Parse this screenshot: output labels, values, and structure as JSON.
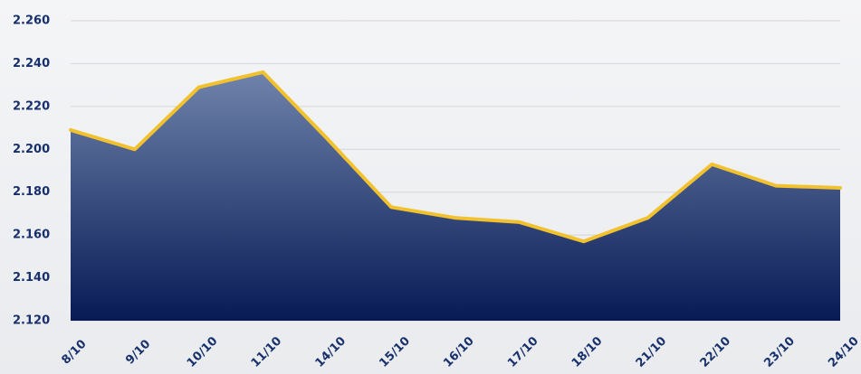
{
  "chart_data": {
    "type": "area",
    "categories": [
      "8/10",
      "9/10",
      "10/10",
      "11/10",
      "14/10",
      "15/10",
      "16/10",
      "17/10",
      "18/10",
      "21/10",
      "22/10",
      "23/10",
      "24/10"
    ],
    "values": [
      2209,
      2200,
      2229,
      2236,
      2205,
      2173,
      2168,
      2166,
      2157,
      2168,
      2193,
      2183,
      2182
    ],
    "color": "#f2c12e",
    "fill_top": "#6f83ab",
    "fill_bottom": "#071a55",
    "ylim": [
      2120,
      2260
    ],
    "yticks": [
      {
        "value": 2120,
        "label": "2.120"
      },
      {
        "value": 2140,
        "label": "2.140"
      },
      {
        "value": 2160,
        "label": "2.160"
      },
      {
        "value": 2180,
        "label": "2.180"
      },
      {
        "value": 2200,
        "label": "2.200"
      },
      {
        "value": 2220,
        "label": "2.220"
      },
      {
        "value": 2240,
        "label": "2.240"
      },
      {
        "value": 2260,
        "label": "2.260"
      }
    ],
    "grid": true
  }
}
